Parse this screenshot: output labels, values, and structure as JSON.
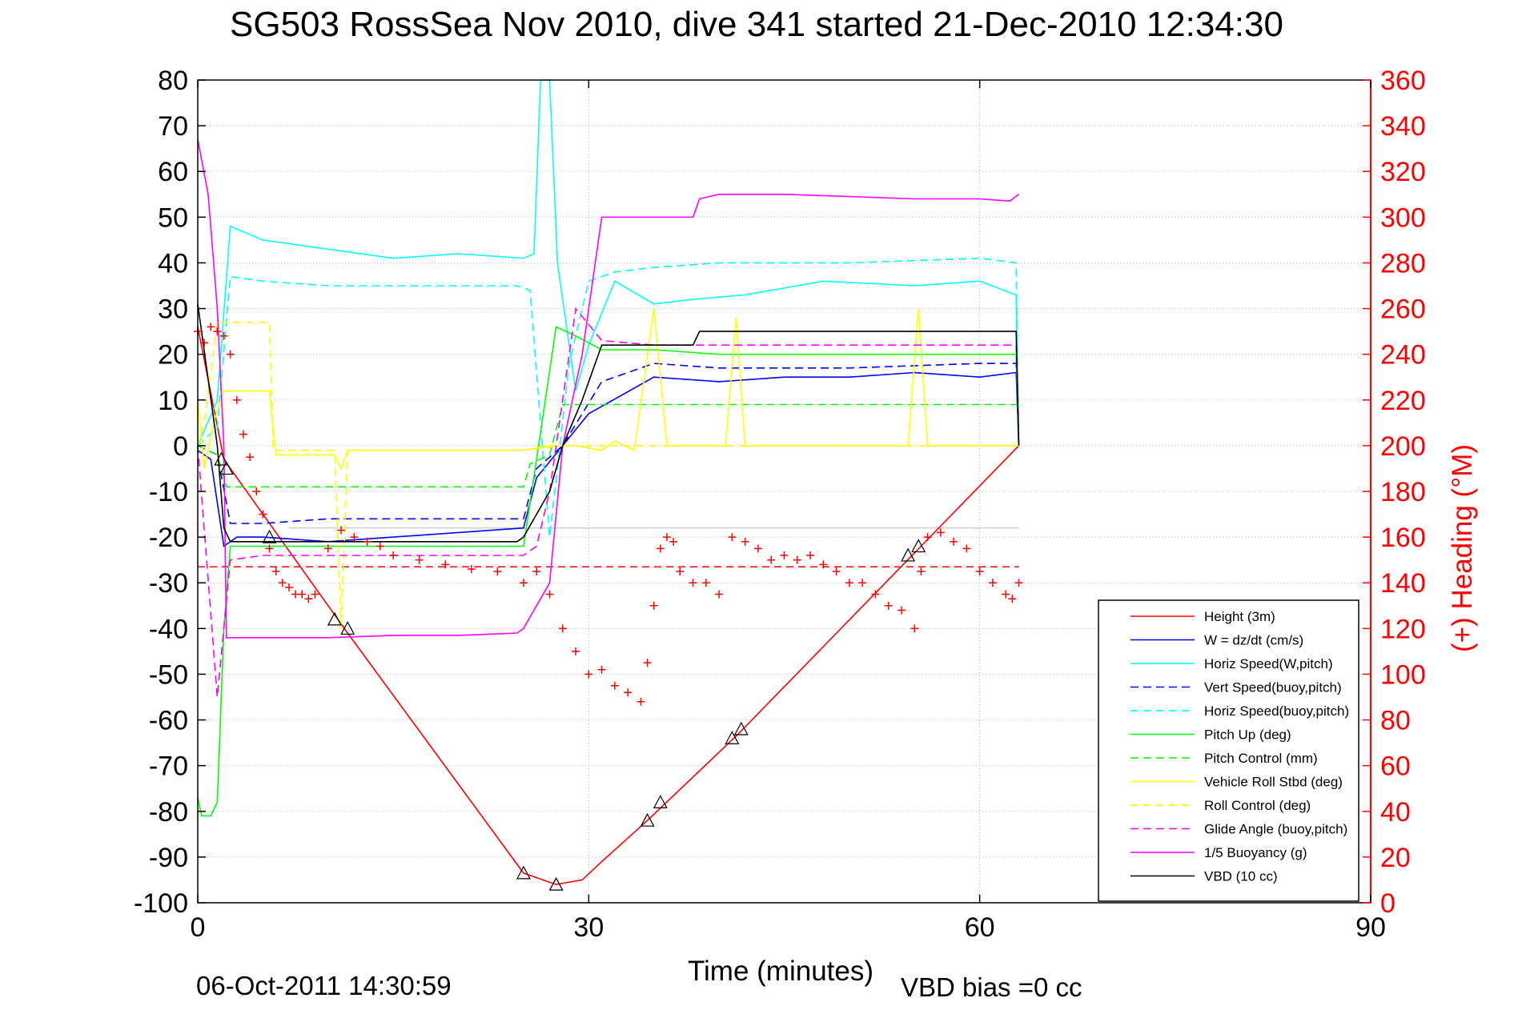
{
  "chart_data": {
    "type": "line",
    "title": "SG503 RossSea Nov 2010, dive 341 started 21-Dec-2010 12:34:30",
    "xlabel": "Time (minutes)",
    "ylabel": "",
    "y2label": "(+) Heading (°M)",
    "footer_left": "06-Oct-2011 14:30:59",
    "footer_right": "VBD bias =0 cc",
    "xlim": [
      0,
      90
    ],
    "ylim": [
      -100,
      80
    ],
    "y2lim": [
      0,
      360
    ],
    "x_ticks": [
      "0",
      "30",
      "60",
      "90"
    ],
    "y_ticks": [
      "80",
      "70",
      "60",
      "50",
      "40",
      "30",
      "20",
      "10",
      "0",
      "-10",
      "-20",
      "-30",
      "-40",
      "-50",
      "-60",
      "-70",
      "-80",
      "-90",
      "-100"
    ],
    "y2_ticks": [
      "360",
      "340",
      "320",
      "300",
      "280",
      "260",
      "240",
      "220",
      "200",
      "180",
      "160",
      "140",
      "120",
      "100",
      "80",
      "60",
      "40",
      "20",
      "0"
    ],
    "grid": true,
    "legend_position": "bottom-right",
    "colors": {
      "red": "#ff0000",
      "blue": "#0000ff",
      "cyan": "#00ffff",
      "green": "#00ff00",
      "yellow": "#ffff00",
      "magenta": "#ff00ff",
      "black": "#000000"
    },
    "series": [
      {
        "name": "Height (3m)",
        "color": "#ff0000",
        "dash": false,
        "x": [
          0,
          2,
          11.5,
          25,
          27.5,
          29.5,
          31,
          34.5,
          41.5,
          55.5,
          63
        ],
        "y": [
          26,
          -3,
          -41,
          -93.5,
          -96,
          -95,
          -91,
          -82,
          -63,
          -22,
          0
        ]
      },
      {
        "name": "W = dz/dt (cm/s)",
        "color": "#0000ff",
        "dash": false,
        "x": [
          0,
          1,
          2,
          3,
          5,
          10,
          15,
          20,
          25,
          26,
          28,
          30,
          35,
          40,
          45,
          50,
          55,
          60,
          62.8,
          63
        ],
        "y": [
          -1,
          -3,
          -22,
          -20,
          -20,
          -21,
          -20,
          -19,
          -18,
          -7,
          0,
          7,
          15,
          14,
          15,
          15,
          16,
          15,
          16,
          0
        ]
      },
      {
        "name": "Horiz Speed(W,pitch)",
        "color": "#00ffff",
        "dash": false,
        "x": [
          0,
          1.5,
          2.5,
          5,
          10,
          15,
          20,
          25,
          25.8,
          26.3,
          27,
          27.6,
          29,
          30,
          32,
          35,
          38,
          42,
          48,
          55,
          60,
          62.8,
          63
        ],
        "y": [
          0,
          10,
          48,
          45,
          43,
          41,
          42,
          41,
          42,
          80,
          80,
          40,
          12,
          22,
          36,
          31,
          32,
          33,
          36,
          35,
          36,
          33,
          0
        ]
      },
      {
        "name": "Vert Speed(buoy,pitch)",
        "color": "#0000ff",
        "dash": true,
        "x": [
          0,
          1.5,
          2.5,
          5,
          10,
          15,
          20,
          25,
          26,
          28,
          31,
          35,
          40,
          50,
          60,
          62.8,
          63
        ],
        "y": [
          0,
          -2,
          -17,
          -17,
          -16,
          -16,
          -16,
          -16,
          -5,
          0,
          14,
          18,
          17,
          17,
          18,
          18,
          0
        ]
      },
      {
        "name": "Horiz Speed(buoy,pitch)",
        "color": "#00ffff",
        "dash": true,
        "x": [
          0,
          1.5,
          2.5,
          5,
          10,
          15,
          20,
          24.5,
          25.5,
          27,
          28.5,
          30,
          32,
          35,
          40,
          50,
          60,
          62.8,
          63
        ],
        "y": [
          0,
          4,
          37,
          36,
          35,
          35,
          35,
          35,
          34,
          -20,
          18,
          36,
          38,
          39,
          40,
          40,
          41,
          40,
          0
        ]
      },
      {
        "name": "Pitch Up (deg)",
        "color": "#00ff00",
        "dash": false,
        "x": [
          0,
          0.3,
          1,
          1.5,
          2,
          2.5,
          5,
          10,
          15,
          20,
          25,
          26,
          27.5,
          29,
          31,
          35,
          40,
          50,
          60,
          62.8,
          63
        ],
        "y": [
          -77,
          -81,
          -81,
          -78,
          -40,
          -22,
          -22,
          -22,
          -22,
          -22,
          -22,
          -3,
          26,
          24,
          21,
          21,
          20,
          20,
          20,
          20,
          0
        ]
      },
      {
        "name": "Pitch Control (mm)",
        "color": "#00ff00",
        "dash": true,
        "x": [
          0,
          1.5,
          2.2,
          5,
          10,
          20,
          25,
          25.5,
          27,
          28,
          31,
          33,
          63
        ],
        "y": [
          0,
          -2,
          -9,
          -9,
          -9,
          -9,
          -9,
          -4,
          -2,
          9,
          9,
          9,
          9
        ]
      },
      {
        "name": "Vehicle Roll Stbd (deg)",
        "color": "#ffff00",
        "dash": false,
        "x": [
          0,
          0.5,
          1.2,
          2,
          5.5,
          6,
          10.5,
          11,
          11.5,
          25,
          27,
          29,
          31,
          32,
          33.5,
          35,
          36,
          38,
          40.5,
          41.3,
          42,
          45,
          50,
          54.5,
          55.3,
          56,
          63
        ],
        "y": [
          10,
          -5,
          5,
          12,
          12,
          -2,
          -2,
          -5,
          -1,
          -1,
          0,
          0,
          -1,
          1,
          -1,
          30,
          0,
          0,
          0,
          28,
          0,
          0,
          0,
          0,
          30,
          0,
          0
        ]
      },
      {
        "name": "Roll Control (deg)",
        "color": "#ffff00",
        "dash": true,
        "x": [
          0,
          0.5,
          1.5,
          2,
          2.3,
          5,
          5.5,
          5.8,
          10,
          10.5,
          11,
          11.5,
          15,
          20,
          25,
          28,
          31,
          32,
          33.5,
          35,
          35.5,
          40.5,
          41,
          41.5,
          42,
          54.5,
          55,
          56,
          56.5,
          63
        ],
        "y": [
          0,
          5,
          27,
          27,
          27,
          27,
          27,
          -1,
          -1,
          -1,
          -40,
          -1,
          -1,
          -1,
          -1,
          0,
          0,
          0,
          0,
          0,
          0,
          0,
          0,
          0,
          0,
          0,
          0,
          0,
          0,
          0
        ]
      },
      {
        "name": "Glide Angle (buoy,pitch)",
        "color": "#ff00ff",
        "dash": true,
        "x": [
          0,
          1.5,
          2.5,
          5,
          10,
          20,
          25,
          26,
          27,
          29,
          31,
          35,
          40,
          50,
          60,
          62.8,
          63
        ],
        "y": [
          0,
          -55,
          -25,
          -24,
          -24,
          -24,
          -24,
          -22,
          -10,
          30,
          23,
          22,
          22,
          22,
          22,
          22,
          0
        ]
      },
      {
        "name": "1/5 Buoyancy (g)",
        "color": "#ff00ff",
        "dash": false,
        "x": [
          0,
          0.8,
          1.5,
          2,
          2.2,
          5,
          10,
          15,
          20,
          24.5,
          25,
          27,
          28,
          29.5,
          31,
          35,
          38,
          38.5,
          40,
          45,
          50,
          55,
          60,
          62.3,
          63
        ],
        "y": [
          67,
          55,
          30,
          0,
          -42,
          -42,
          -42,
          -41.5,
          -41.5,
          -41,
          -40,
          -30,
          0,
          20,
          50,
          50,
          50,
          54,
          55,
          55,
          54.5,
          54,
          54,
          53.5,
          55
        ]
      },
      {
        "name": "VBD (10 cc)",
        "color": "#000000",
        "dash": false,
        "x": [
          0,
          1.5,
          2,
          2.5,
          5,
          10,
          15,
          20,
          24.5,
          25,
          27,
          28,
          29.5,
          31,
          35,
          38,
          38.5,
          45,
          50,
          55,
          60,
          62.8,
          63
        ],
        "y": [
          31,
          0,
          -18,
          -21,
          -21,
          -21,
          -21,
          -21,
          -21,
          -20,
          -10,
          0,
          10,
          22,
          22,
          22,
          25,
          25,
          25,
          25,
          25,
          25,
          0
        ]
      }
    ],
    "heading_points": {
      "name": "(+) Heading (°M)",
      "color": "#ff0000",
      "marker": "+",
      "x": [
        0,
        0.5,
        1,
        1.5,
        2,
        2.5,
        3,
        3.5,
        4,
        4.5,
        5,
        5.5,
        6,
        6.5,
        7,
        7.5,
        8,
        8.5,
        9,
        10,
        11,
        12,
        13,
        14,
        15,
        17,
        19,
        21,
        23,
        25,
        26,
        27,
        28,
        29,
        30,
        31,
        32,
        33,
        34,
        34.5,
        35,
        35.5,
        36,
        36.5,
        37,
        38,
        39,
        40,
        41,
        42,
        43,
        44,
        45,
        46,
        47,
        48,
        49,
        50,
        51,
        52,
        53,
        54,
        55,
        55.5,
        56,
        57,
        58,
        59,
        60,
        61,
        62,
        62.5,
        63
      ],
      "y": [
        250,
        245,
        252,
        250,
        248,
        240,
        220,
        205,
        195,
        180,
        170,
        155,
        145,
        140,
        138,
        135,
        135,
        133,
        135,
        155,
        163,
        160,
        158,
        156,
        152,
        150,
        148,
        146,
        145,
        140,
        145,
        135,
        120,
        110,
        100,
        102,
        95,
        92,
        88,
        105,
        130,
        155,
        160,
        158,
        145,
        140,
        140,
        135,
        160,
        158,
        155,
        150,
        152,
        150,
        152,
        148,
        145,
        140,
        140,
        135,
        130,
        128,
        120,
        145,
        160,
        162,
        158,
        155,
        145,
        140,
        135,
        133,
        140
      ]
    },
    "reference_lines": [
      {
        "color": "#ff0000",
        "dash": true,
        "y2": 147,
        "x_start": 0,
        "x_end": 63
      },
      {
        "color": "#d0d0d0",
        "dash": false,
        "y": -18,
        "x_start": 7,
        "x_end": 63
      }
    ],
    "triangle_markers": {
      "x": [
        1.8,
        2.2,
        5.5,
        10.5,
        11.5,
        25,
        27.5,
        34.5,
        35.5,
        41,
        41.7,
        54.5,
        55.3
      ],
      "y": [
        -3,
        -5,
        -20,
        -38,
        -40,
        -93.5,
        -96,
        -82,
        -78,
        -64,
        -62,
        -24,
        -22
      ]
    }
  }
}
